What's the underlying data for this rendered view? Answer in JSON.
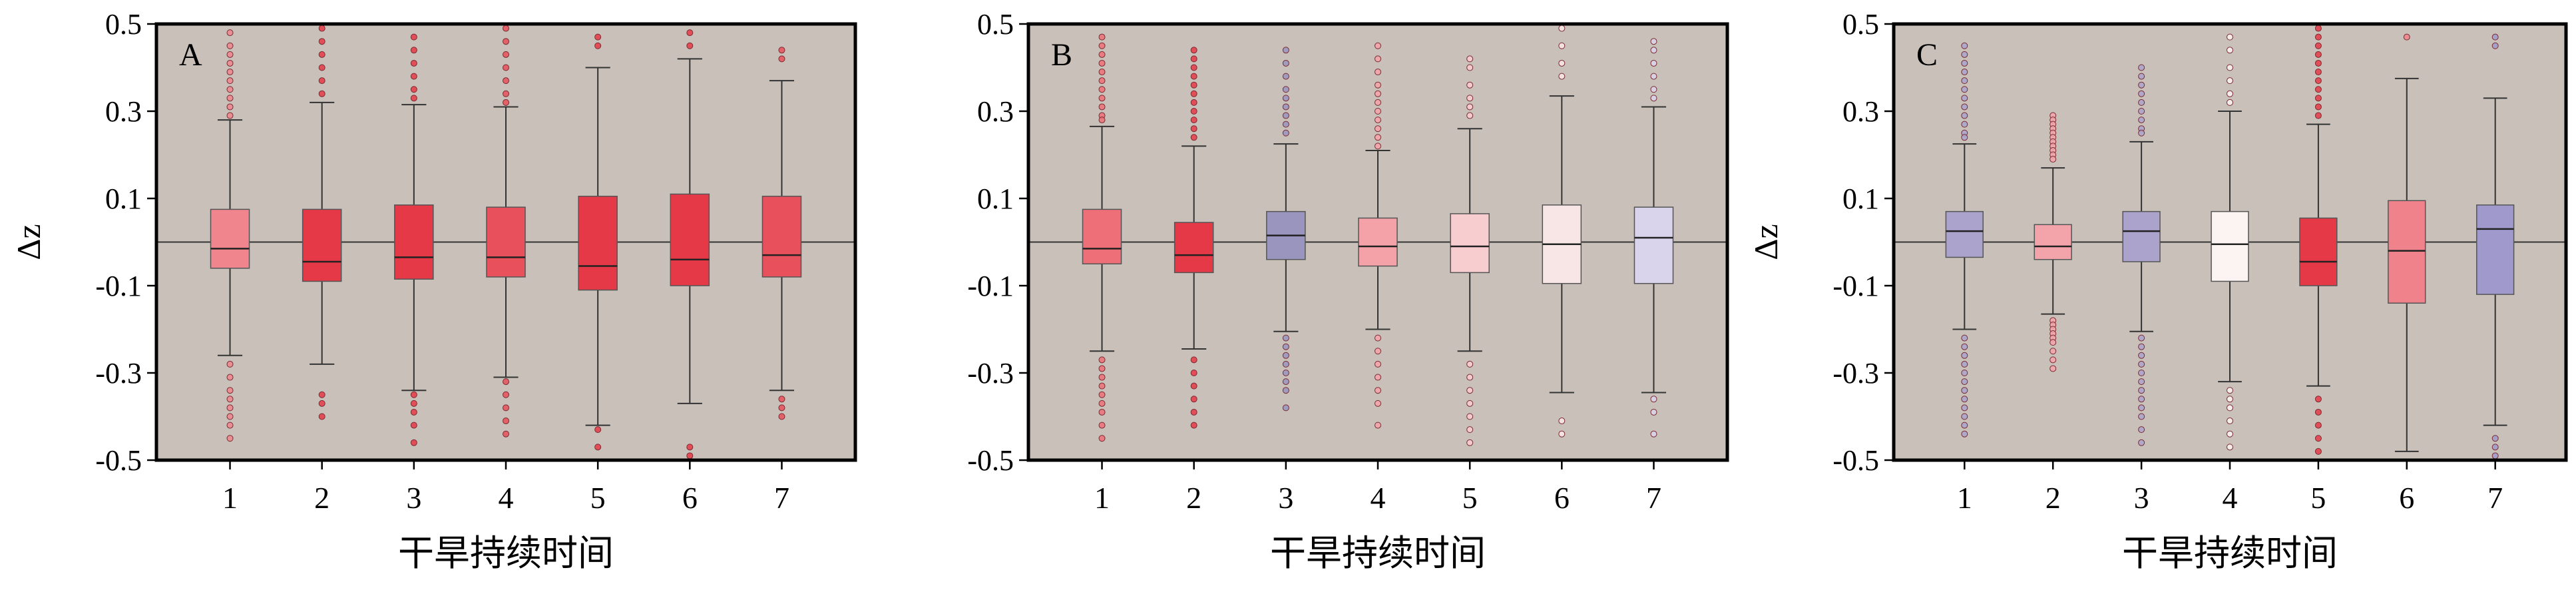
{
  "chart_data": [
    {
      "type": "box",
      "panel_label": "A",
      "xlabel": "干旱持续时间",
      "ylabel": "Δz",
      "categories": [
        "1",
        "2",
        "3",
        "4",
        "5",
        "6",
        "7"
      ],
      "ylim": [
        -0.5,
        0.5
      ],
      "yticks": [
        "0.5",
        "0.3",
        "0.1",
        "-0.1",
        "-0.3",
        "-0.5"
      ],
      "yticks_values": [
        0.5,
        0.3,
        0.1,
        -0.1,
        -0.3,
        -0.5
      ],
      "reference_line": 0.0,
      "background": "#c8c0b9",
      "boxes": [
        {
          "q1": -0.06,
          "median": -0.015,
          "q3": 0.075,
          "whisker_low": -0.26,
          "whisker_high": 0.28,
          "color": "#f0858e",
          "outliers": [
            0.48,
            0.45,
            0.43,
            0.41,
            0.39,
            0.37,
            0.35,
            0.33,
            0.31,
            0.29,
            -0.28,
            -0.31,
            -0.34,
            -0.36,
            -0.38,
            -0.4,
            -0.42,
            -0.45
          ]
        },
        {
          "q1": -0.09,
          "median": -0.045,
          "q3": 0.075,
          "whisker_low": -0.28,
          "whisker_high": 0.32,
          "color": "#e63947",
          "outliers": [
            0.49,
            0.46,
            0.43,
            0.4,
            0.37,
            0.34,
            -0.35,
            -0.37,
            -0.4
          ]
        },
        {
          "q1": -0.085,
          "median": -0.035,
          "q3": 0.085,
          "whisker_low": -0.34,
          "whisker_high": 0.315,
          "color": "#e63947",
          "outliers": [
            0.47,
            0.44,
            0.41,
            0.38,
            0.35,
            0.33,
            -0.35,
            -0.37,
            -0.39,
            -0.42,
            -0.46
          ]
        },
        {
          "q1": -0.08,
          "median": -0.035,
          "q3": 0.08,
          "whisker_low": -0.31,
          "whisker_high": 0.31,
          "color": "#e8505b",
          "outliers": [
            0.49,
            0.46,
            0.43,
            0.4,
            0.37,
            0.34,
            0.32,
            -0.32,
            -0.35,
            -0.38,
            -0.41,
            -0.44
          ]
        },
        {
          "q1": -0.11,
          "median": -0.055,
          "q3": 0.105,
          "whisker_low": -0.42,
          "whisker_high": 0.4,
          "color": "#e63947",
          "outliers": [
            0.47,
            0.45,
            -0.43,
            -0.47
          ]
        },
        {
          "q1": -0.1,
          "median": -0.04,
          "q3": 0.11,
          "whisker_low": -0.37,
          "whisker_high": 0.42,
          "color": "#e63947",
          "outliers": [
            0.48,
            0.45,
            -0.47,
            -0.49
          ]
        },
        {
          "q1": -0.08,
          "median": -0.03,
          "q3": 0.105,
          "whisker_low": -0.34,
          "whisker_high": 0.37,
          "color": "#e8505b",
          "outliers": [
            0.44,
            0.42,
            -0.36,
            -0.38,
            -0.4
          ]
        }
      ]
    },
    {
      "type": "box",
      "panel_label": "B",
      "xlabel": "干旱持续时间",
      "ylabel": "",
      "categories": [
        "1",
        "2",
        "3",
        "4",
        "5",
        "6",
        "7"
      ],
      "ylim": [
        -0.5,
        0.5
      ],
      "yticks": [
        "0.5",
        "0.3",
        "0.1",
        "-0.1",
        "-0.3",
        "-0.5"
      ],
      "yticks_values": [
        0.5,
        0.3,
        0.1,
        -0.1,
        -0.3,
        -0.5
      ],
      "reference_line": 0.0,
      "background": "#c8c0b9",
      "boxes": [
        {
          "q1": -0.05,
          "median": -0.015,
          "q3": 0.075,
          "whisker_low": -0.25,
          "whisker_high": 0.265,
          "color": "#ee6f78",
          "outliers": [
            0.47,
            0.45,
            0.43,
            0.41,
            0.39,
            0.37,
            0.35,
            0.33,
            0.31,
            0.29,
            0.28,
            -0.27,
            -0.29,
            -0.31,
            -0.33,
            -0.35,
            -0.37,
            -0.39,
            -0.42,
            -0.45
          ]
        },
        {
          "q1": -0.07,
          "median": -0.03,
          "q3": 0.045,
          "whisker_low": -0.245,
          "whisker_high": 0.22,
          "color": "#e63947",
          "outliers": [
            0.44,
            0.42,
            0.4,
            0.38,
            0.36,
            0.34,
            0.32,
            0.3,
            0.28,
            0.26,
            0.24,
            -0.27,
            -0.3,
            -0.33,
            -0.36,
            -0.39,
            -0.42
          ]
        },
        {
          "q1": -0.04,
          "median": 0.015,
          "q3": 0.07,
          "whisker_low": -0.205,
          "whisker_high": 0.225,
          "color": "#9a95bf",
          "outliers": [
            0.44,
            0.41,
            0.38,
            0.35,
            0.33,
            0.31,
            0.29,
            0.27,
            0.25,
            -0.22,
            -0.24,
            -0.26,
            -0.28,
            -0.3,
            -0.32,
            -0.34,
            -0.38
          ]
        },
        {
          "q1": -0.055,
          "median": -0.01,
          "q3": 0.055,
          "whisker_low": -0.2,
          "whisker_high": 0.21,
          "color": "#f4a2a8",
          "outliers": [
            0.45,
            0.42,
            0.39,
            0.36,
            0.34,
            0.32,
            0.3,
            0.28,
            0.26,
            0.24,
            0.22,
            -0.22,
            -0.25,
            -0.28,
            -0.31,
            -0.34,
            -0.37,
            -0.42
          ]
        },
        {
          "q1": -0.07,
          "median": -0.01,
          "q3": 0.065,
          "whisker_low": -0.25,
          "whisker_high": 0.26,
          "color": "#f8cdd0",
          "outliers": [
            0.42,
            0.4,
            0.36,
            0.33,
            0.31,
            0.29,
            -0.28,
            -0.31,
            -0.34,
            -0.37,
            -0.4,
            -0.43,
            -0.46
          ]
        },
        {
          "q1": -0.095,
          "median": -0.005,
          "q3": 0.085,
          "whisker_low": -0.345,
          "whisker_high": 0.335,
          "color": "#f8e6e6",
          "outliers": [
            0.49,
            0.45,
            0.41,
            0.38,
            -0.41,
            -0.44
          ]
        },
        {
          "q1": -0.095,
          "median": 0.01,
          "q3": 0.08,
          "whisker_low": -0.345,
          "whisker_high": 0.31,
          "color": "#d9d4ec",
          "outliers": [
            0.46,
            0.44,
            0.41,
            0.38,
            0.35,
            0.33,
            -0.36,
            -0.39,
            -0.44
          ]
        }
      ]
    },
    {
      "type": "box",
      "panel_label": "C",
      "xlabel": "干旱持续时间",
      "ylabel": "Δz",
      "categories": [
        "1",
        "2",
        "3",
        "4",
        "5",
        "6",
        "7"
      ],
      "ylim": [
        -0.5,
        0.5
      ],
      "yticks": [
        "0.5",
        "0.3",
        "0.1",
        "-0.1",
        "-0.3",
        "-0.5"
      ],
      "yticks_values": [
        0.5,
        0.3,
        0.1,
        -0.1,
        -0.3,
        -0.5
      ],
      "reference_line": 0.0,
      "background": "#c8c0b9",
      "boxes": [
        {
          "q1": -0.035,
          "median": 0.025,
          "q3": 0.07,
          "whisker_low": -0.2,
          "whisker_high": 0.225,
          "color": "#aba3cc",
          "outliers": [
            0.45,
            0.43,
            0.41,
            0.39,
            0.37,
            0.35,
            0.33,
            0.31,
            0.29,
            0.27,
            0.25,
            0.24,
            -0.22,
            -0.24,
            -0.26,
            -0.28,
            -0.3,
            -0.32,
            -0.34,
            -0.36,
            -0.38,
            -0.4,
            -0.42,
            -0.44
          ]
        },
        {
          "q1": -0.04,
          "median": -0.01,
          "q3": 0.04,
          "whisker_low": -0.165,
          "whisker_high": 0.17,
          "color": "#f3a3aa",
          "outliers": [
            0.29,
            0.28,
            0.27,
            0.26,
            0.25,
            0.24,
            0.23,
            0.22,
            0.21,
            0.2,
            0.19,
            -0.18,
            -0.19,
            -0.2,
            -0.21,
            -0.22,
            -0.23,
            -0.25,
            -0.27,
            -0.29
          ]
        },
        {
          "q1": -0.045,
          "median": 0.025,
          "q3": 0.07,
          "whisker_low": -0.205,
          "whisker_high": 0.23,
          "color": "#aba3cc",
          "outliers": [
            0.4,
            0.38,
            0.36,
            0.34,
            0.32,
            0.3,
            0.28,
            0.26,
            0.25,
            -0.22,
            -0.24,
            -0.26,
            -0.28,
            -0.3,
            -0.32,
            -0.34,
            -0.36,
            -0.38,
            -0.4,
            -0.43,
            -0.46
          ]
        },
        {
          "q1": -0.09,
          "median": -0.005,
          "q3": 0.07,
          "whisker_low": -0.32,
          "whisker_high": 0.3,
          "color": "#fcf3f3",
          "outliers": [
            0.47,
            0.44,
            0.4,
            0.37,
            0.34,
            0.32,
            -0.34,
            -0.36,
            -0.38,
            -0.41,
            -0.44,
            -0.47
          ]
        },
        {
          "q1": -0.1,
          "median": -0.045,
          "q3": 0.055,
          "whisker_low": -0.33,
          "whisker_high": 0.27,
          "color": "#e63947",
          "outliers": [
            0.49,
            0.47,
            0.45,
            0.43,
            0.41,
            0.39,
            0.37,
            0.35,
            0.33,
            0.31,
            0.29,
            -0.36,
            -0.39,
            -0.42,
            -0.45,
            -0.48
          ]
        },
        {
          "q1": -0.14,
          "median": -0.02,
          "q3": 0.095,
          "whisker_low": -0.48,
          "whisker_high": 0.375,
          "color": "#f0828b",
          "outliers": [
            0.47
          ]
        },
        {
          "q1": -0.12,
          "median": 0.03,
          "q3": 0.085,
          "whisker_low": -0.42,
          "whisker_high": 0.33,
          "color": "#9f9acb",
          "outliers": [
            0.47,
            0.45,
            -0.45,
            -0.47,
            -0.49
          ]
        }
      ]
    }
  ]
}
